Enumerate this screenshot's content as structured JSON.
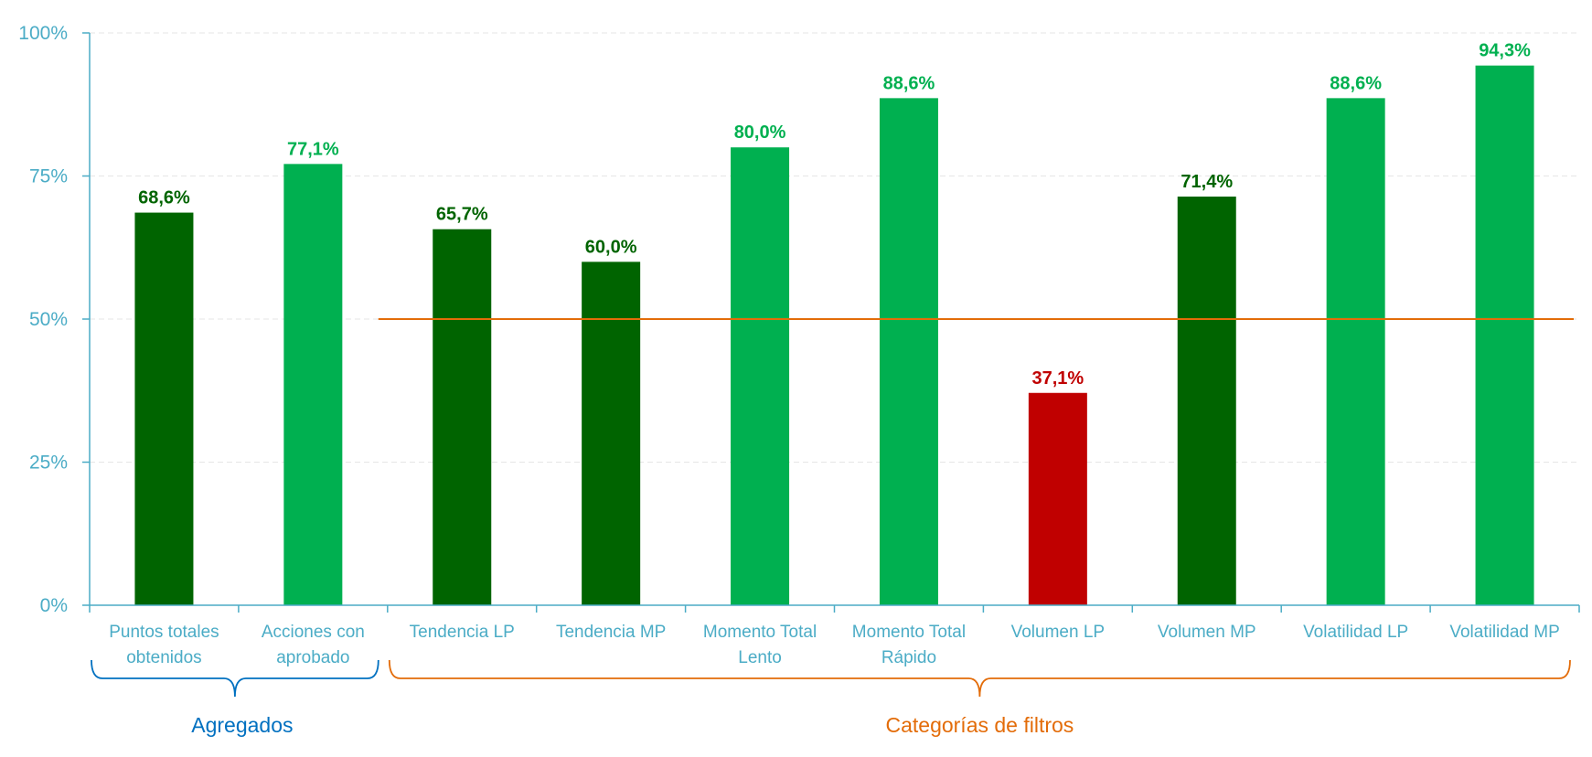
{
  "chart_data": {
    "type": "bar",
    "categories": [
      [
        "Puntos totales",
        "obtenidos"
      ],
      [
        "Acciones con",
        "aprobado"
      ],
      [
        "Tendencia LP"
      ],
      [
        "Tendencia MP"
      ],
      [
        "Momento Total",
        "Lento"
      ],
      [
        "Momento Total",
        "Rápido"
      ],
      [
        "Volumen LP"
      ],
      [
        "Volumen MP"
      ],
      [
        "Volatilidad LP"
      ],
      [
        "Volatilidad MP"
      ]
    ],
    "values": [
      68.6,
      77.1,
      65.7,
      60.0,
      80.0,
      88.6,
      37.1,
      71.4,
      88.6,
      94.3
    ],
    "value_labels": [
      "68,6%",
      "77,1%",
      "65,7%",
      "60,0%",
      "80,0%",
      "88,6%",
      "37,1%",
      "71,4%",
      "88,6%",
      "94,3%"
    ],
    "bar_colors": [
      "#006400",
      "#00B050",
      "#006400",
      "#006400",
      "#00B050",
      "#00B050",
      "#C00000",
      "#006400",
      "#00B050",
      "#00B050"
    ],
    "ylim": [
      0,
      100
    ],
    "yticks": [
      0,
      25,
      50,
      75,
      100
    ],
    "ytick_labels": [
      "0%",
      "25%",
      "50%",
      "75%",
      "100%"
    ],
    "reference_line": {
      "value": 50,
      "from_category": 2,
      "color": "#E36C09"
    },
    "groups": [
      {
        "label": "Agregados",
        "from": 0,
        "to": 1,
        "color": "#0070C0"
      },
      {
        "label": "Categorías de filtros",
        "from": 2,
        "to": 9,
        "color": "#E36C09"
      }
    ],
    "axis_color": "#4BACC6",
    "grid": true,
    "title": "",
    "xlabel": "",
    "ylabel": ""
  }
}
